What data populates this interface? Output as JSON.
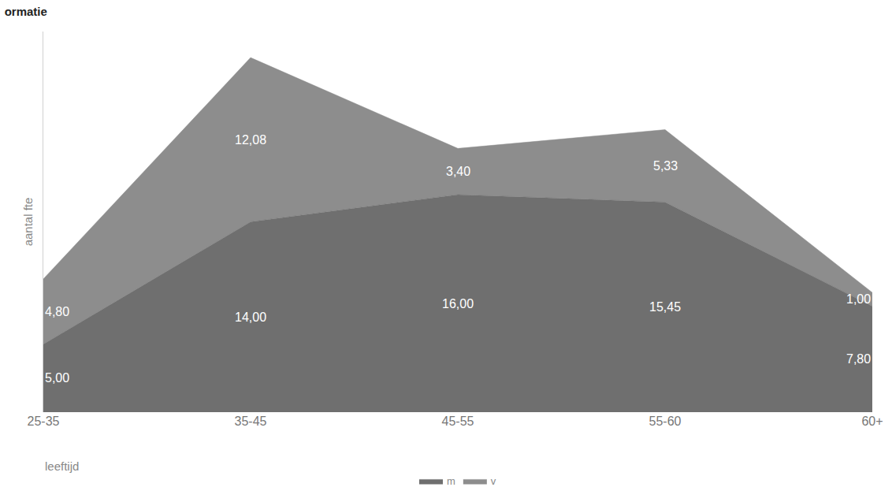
{
  "chart_data": {
    "type": "area",
    "title": "ormatie",
    "x_label": "leeftijd",
    "y_label": "aantal fte",
    "categories": [
      "25-35",
      "35-45",
      "45-55",
      "55-60",
      "60+"
    ],
    "stacked": true,
    "data_labels": true,
    "tick_labels": "x",
    "grid": false,
    "legend": "bottom",
    "ylim": [
      0,
      28
    ],
    "series": [
      {
        "name": "m",
        "color": "#6f6f6f",
        "values": [
          5.0,
          14.0,
          16.0,
          15.45,
          7.8
        ],
        "value_labels": [
          "5,00",
          "14,00",
          "16,00",
          "15,45",
          "7,80"
        ]
      },
      {
        "name": "v",
        "color": "#8d8d8d",
        "values": [
          4.8,
          12.08,
          3.4,
          5.33,
          1.0
        ],
        "value_labels": [
          "4,80",
          "12,08",
          "3,40",
          "5,33",
          "1,00"
        ]
      }
    ]
  }
}
